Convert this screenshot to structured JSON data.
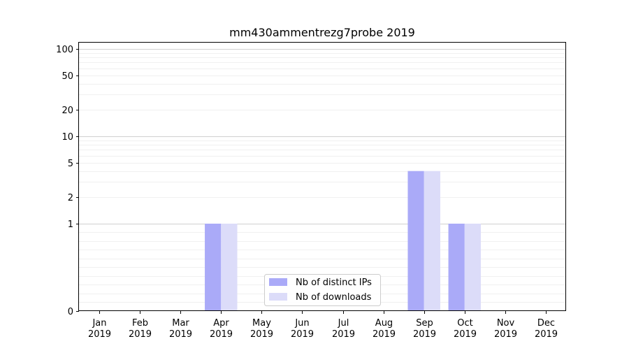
{
  "chart_data": {
    "type": "bar",
    "title": "mm430ammentrezg7probe 2019",
    "xlabel": "",
    "ylabel": "",
    "scale": "symlog",
    "ylim": [
      0,
      120
    ],
    "categories": [
      [
        "Jan",
        "2019"
      ],
      [
        "Feb",
        "2019"
      ],
      [
        "Mar",
        "2019"
      ],
      [
        "Apr",
        "2019"
      ],
      [
        "May",
        "2019"
      ],
      [
        "Jun",
        "2019"
      ],
      [
        "Jul",
        "2019"
      ],
      [
        "Aug",
        "2019"
      ],
      [
        "Sep",
        "2019"
      ],
      [
        "Oct",
        "2019"
      ],
      [
        "Nov",
        "2019"
      ],
      [
        "Dec",
        "2019"
      ]
    ],
    "y_ticks": [
      0,
      1,
      2,
      5,
      10,
      20,
      50,
      100
    ],
    "series": [
      {
        "name": "Nb of distinct IPs",
        "color": "#aaaaf8",
        "values": [
          0,
          0,
          0,
          1,
          0,
          0,
          0,
          0,
          4,
          1,
          0,
          0
        ]
      },
      {
        "name": "Nb of downloads",
        "color": "#dcdcf9",
        "values": [
          0,
          0,
          0,
          1,
          0,
          0,
          0,
          0,
          4,
          1,
          0,
          0
        ]
      }
    ],
    "legend": "lower-center",
    "grid": "horizontal-minor"
  }
}
